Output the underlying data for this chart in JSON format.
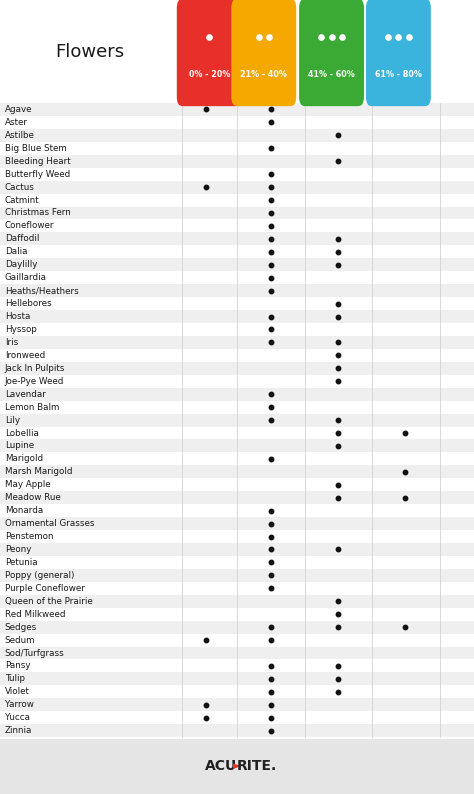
{
  "title": "Flowers",
  "columns": [
    "0% - 20%",
    "21% - 40%",
    "41% - 60%",
    "61% - 80%"
  ],
  "col_colors": [
    "#e8302a",
    "#f5a800",
    "#3aaa35",
    "#3ab4dc"
  ],
  "flowers": [
    "Agave",
    "Aster",
    "Astilbe",
    "Big Blue Stem",
    "Bleeding Heart",
    "Butterfly Weed",
    "Cactus",
    "Catmint",
    "Christmas Fern",
    "Coneflower",
    "Daffodil",
    "Dalia",
    "Daylilly",
    "Gaillardia",
    "Heaths/Heathers",
    "Hellebores",
    "Hosta",
    "Hyssop",
    "Iris",
    "Ironweed",
    "Jack In Pulpits",
    "Joe-Pye Weed",
    "Lavendar",
    "Lemon Balm",
    "Lily",
    "Lobellia",
    "Lupine",
    "Marigold",
    "Marsh Marigold",
    "May Apple",
    "Meadow Rue",
    "Monarda",
    "Ornamental Grasses",
    "Penstemon",
    "Peony",
    "Petunia",
    "Poppy (general)",
    "Purple Coneflower",
    "Queen of the Prairie",
    "Red Milkweed",
    "Sedges",
    "Sedum",
    "Sod/Turfgrass",
    "Pansy",
    "Tulip",
    "Violet",
    "Yarrow",
    "Yucca",
    "Zinnia"
  ],
  "dots": {
    "Agave": [
      1,
      1,
      0,
      0
    ],
    "Aster": [
      0,
      1,
      0,
      0
    ],
    "Astilbe": [
      0,
      0,
      1,
      0
    ],
    "Big Blue Stem": [
      0,
      1,
      0,
      0
    ],
    "Bleeding Heart": [
      0,
      0,
      1,
      0
    ],
    "Butterfly Weed": [
      0,
      1,
      0,
      0
    ],
    "Cactus": [
      1,
      1,
      0,
      0
    ],
    "Catmint": [
      0,
      1,
      0,
      0
    ],
    "Christmas Fern": [
      0,
      1,
      0,
      0
    ],
    "Coneflower": [
      0,
      1,
      0,
      0
    ],
    "Daffodil": [
      0,
      1,
      1,
      0
    ],
    "Dalia": [
      0,
      1,
      1,
      0
    ],
    "Daylilly": [
      0,
      1,
      1,
      0
    ],
    "Gaillardia": [
      0,
      1,
      0,
      0
    ],
    "Heaths/Heathers": [
      0,
      1,
      0,
      0
    ],
    "Hellebores": [
      0,
      0,
      1,
      0
    ],
    "Hosta": [
      0,
      1,
      1,
      0
    ],
    "Hyssop": [
      0,
      1,
      0,
      0
    ],
    "Iris": [
      0,
      1,
      1,
      0
    ],
    "Ironweed": [
      0,
      0,
      1,
      0
    ],
    "Jack In Pulpits": [
      0,
      0,
      1,
      0
    ],
    "Joe-Pye Weed": [
      0,
      0,
      1,
      0
    ],
    "Lavendar": [
      0,
      1,
      0,
      0
    ],
    "Lemon Balm": [
      0,
      1,
      0,
      0
    ],
    "Lily": [
      0,
      1,
      1,
      0
    ],
    "Lobellia": [
      0,
      0,
      1,
      1
    ],
    "Lupine": [
      0,
      0,
      1,
      0
    ],
    "Marigold": [
      0,
      1,
      0,
      0
    ],
    "Marsh Marigold": [
      0,
      0,
      0,
      1
    ],
    "May Apple": [
      0,
      0,
      1,
      0
    ],
    "Meadow Rue": [
      0,
      0,
      1,
      1
    ],
    "Monarda": [
      0,
      1,
      0,
      0
    ],
    "Ornamental Grasses": [
      0,
      1,
      0,
      0
    ],
    "Penstemon": [
      0,
      1,
      0,
      0
    ],
    "Peony": [
      0,
      1,
      1,
      0
    ],
    "Petunia": [
      0,
      1,
      0,
      0
    ],
    "Poppy (general)": [
      0,
      1,
      0,
      0
    ],
    "Purple Coneflower": [
      0,
      1,
      0,
      0
    ],
    "Queen of the Prairie": [
      0,
      0,
      1,
      0
    ],
    "Red Milkweed": [
      0,
      0,
      1,
      0
    ],
    "Sedges": [
      0,
      1,
      1,
      1
    ],
    "Sedum": [
      1,
      1,
      0,
      0
    ],
    "Sod/Turfgrass": [
      0,
      0,
      0,
      0
    ],
    "Pansy": [
      0,
      1,
      1,
      0
    ],
    "Tulip": [
      0,
      1,
      1,
      0
    ],
    "Violet": [
      0,
      1,
      1,
      0
    ],
    "Yarrow": [
      1,
      1,
      0,
      0
    ],
    "Yucca": [
      1,
      1,
      0,
      0
    ],
    "Zinnia": [
      0,
      1,
      0,
      0
    ]
  },
  "bg_color": "#ffffff",
  "row_alt_color": "#efefef",
  "row_plain_color": "#ffffff",
  "footer_bg": "#e5e5e5",
  "drop_counts": [
    1,
    2,
    3,
    3
  ]
}
